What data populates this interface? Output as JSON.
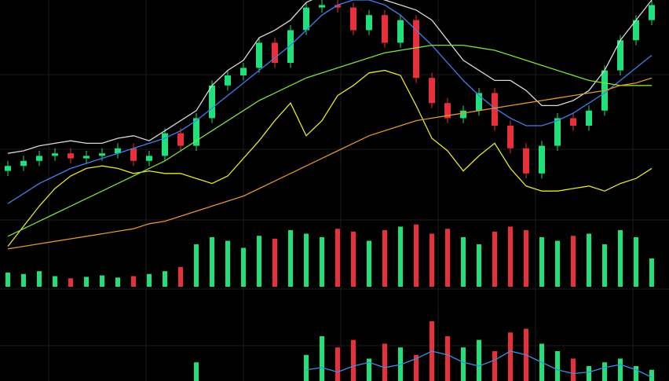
{
  "chart_data": [
    {
      "type": "candlestick",
      "open": [
        32,
        34,
        36,
        38,
        39,
        37,
        38,
        39,
        41,
        36,
        38,
        47,
        42,
        53,
        66,
        70,
        73,
        83,
        75,
        88,
        97,
        98,
        97,
        88,
        94,
        83,
        92,
        69,
        59,
        53,
        56,
        63,
        50,
        41,
        31,
        42,
        53,
        50,
        56,
        72,
        84,
        92
      ],
      "high": [
        36,
        38,
        40,
        41,
        41,
        40,
        41,
        43,
        43,
        40,
        49,
        49,
        55,
        68,
        72,
        75,
        85,
        85,
        90,
        99,
        100,
        100,
        99,
        96,
        96,
        94,
        94,
        71,
        61,
        58,
        65,
        65,
        52,
        43,
        44,
        55,
        55,
        58,
        74,
        86,
        94,
        100
      ],
      "low": [
        30,
        32,
        34,
        36,
        35,
        35,
        36,
        37,
        34,
        34,
        36,
        40,
        40,
        51,
        64,
        68,
        71,
        73,
        73,
        86,
        95,
        95,
        86,
        86,
        81,
        81,
        67,
        57,
        51,
        51,
        54,
        48,
        39,
        29,
        29,
        40,
        48,
        48,
        54,
        70,
        82,
        90
      ],
      "close": [
        34,
        36,
        38,
        39,
        37,
        38,
        39,
        41,
        36,
        38,
        47,
        42,
        53,
        66,
        70,
        73,
        83,
        75,
        88,
        97,
        98,
        97,
        88,
        94,
        83,
        92,
        69,
        59,
        53,
        56,
        63,
        50,
        41,
        31,
        42,
        53,
        50,
        56,
        72,
        84,
        92,
        98
      ],
      "ylim": [
        0,
        100
      ],
      "up_color": "#1fe07a",
      "down_color": "#e8303a",
      "series": [
        {
          "color": "#d8d8d8",
          "values": [
            39,
            40,
            42,
            43,
            44,
            43,
            43,
            45,
            46,
            44,
            48,
            52,
            56,
            66,
            72,
            76,
            85,
            88,
            92,
            99,
            102,
            104,
            104,
            102,
            100,
            98,
            96,
            92,
            84,
            76,
            72,
            68,
            68,
            64,
            58,
            58,
            60,
            64,
            72,
            84,
            92,
            100
          ]
        },
        {
          "color": "#e6e62a",
          "values": [
            2,
            10,
            18,
            25,
            30,
            33,
            34,
            33,
            31,
            32,
            31,
            31,
            29,
            27,
            30,
            37,
            44,
            52,
            59,
            46,
            52,
            62,
            66,
            71,
            72,
            70,
            58,
            45,
            40,
            32,
            38,
            43,
            33,
            26,
            24,
            24,
            25,
            26,
            24,
            27,
            29,
            33
          ]
        },
        {
          "color": "#3f7fe8",
          "values": [
            19,
            23,
            27,
            30,
            33,
            35,
            37,
            39,
            41,
            43,
            45,
            48,
            52,
            57,
            62,
            67,
            72,
            77,
            82,
            88,
            94,
            98,
            100,
            100,
            98,
            94,
            88,
            82,
            75,
            68,
            62,
            57,
            53,
            50,
            50,
            52,
            55,
            59,
            63,
            68,
            73,
            78
          ]
        },
        {
          "color": "#7ee03c",
          "values": [
            6,
            9,
            12,
            15,
            18,
            21,
            24,
            27,
            30,
            33,
            36,
            40,
            44,
            48,
            52,
            56,
            60,
            63,
            66,
            69,
            71,
            73,
            75,
            77,
            79,
            80,
            81,
            82,
            82,
            82,
            81,
            80,
            78,
            76,
            74,
            72,
            70,
            68,
            67,
            66,
            66,
            66
          ]
        },
        {
          "color": "#e0962c",
          "values": [
            1,
            2,
            3,
            4,
            5,
            6,
            7,
            8,
            9,
            11,
            12,
            14,
            16,
            18,
            20,
            22,
            25,
            28,
            31,
            34,
            37,
            40,
            43,
            46,
            48,
            50,
            52,
            53,
            54,
            55,
            56,
            57,
            58,
            59,
            60,
            61,
            62,
            63,
            64,
            66,
            67,
            69
          ]
        }
      ]
    },
    {
      "type": "bar",
      "values": [
        20,
        18,
        22,
        15,
        12,
        14,
        16,
        13,
        15,
        18,
        22,
        28,
        60,
        70,
        65,
        55,
        72,
        68,
        80,
        75,
        70,
        82,
        78,
        65,
        80,
        85,
        88,
        75,
        82,
        70,
        60,
        78,
        85,
        80,
        70,
        65,
        72,
        75,
        60,
        80,
        70,
        40
      ],
      "ylim": [
        0,
        100
      ]
    },
    {
      "type": "bar",
      "values": [
        0,
        0,
        0,
        0,
        0,
        0,
        0,
        0,
        0,
        0,
        0,
        0,
        25,
        0,
        0,
        0,
        0,
        0,
        0,
        35,
        60,
        45,
        55,
        30,
        50,
        45,
        35,
        80,
        60,
        45,
        55,
        40,
        65,
        70,
        50,
        40,
        30,
        20,
        25,
        30,
        20,
        15
      ],
      "ylim": [
        0,
        100
      ],
      "series": [
        {
          "color": "#3a8fe0",
          "values": [
            null,
            null,
            null,
            null,
            null,
            null,
            null,
            null,
            null,
            null,
            null,
            null,
            null,
            null,
            null,
            null,
            null,
            null,
            null,
            15,
            18,
            12,
            20,
            25,
            18,
            22,
            30,
            40,
            35,
            25,
            20,
            28,
            40,
            35,
            25,
            15,
            10,
            12,
            18,
            22,
            15,
            5
          ]
        }
      ]
    }
  ]
}
